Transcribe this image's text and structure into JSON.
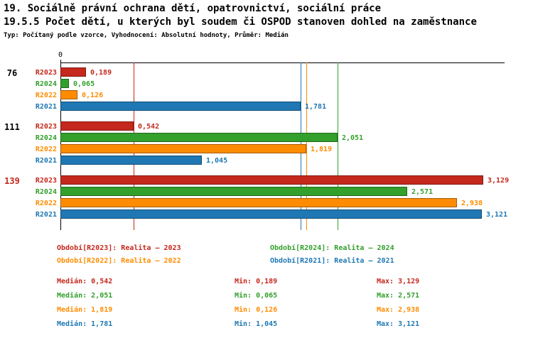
{
  "title": {
    "line1": "19. Sociálně právní ochrana dětí, opatrovnictví, sociální práce",
    "line2": "19.5.5 Počet dětí, u kterých byl soudem či OSPOD stanoven dohled na zaměstnance",
    "line3": "Typ: Počítaný podle vzorce, Vyhodnocení: Absolutní hodnoty, Průměr: Medián"
  },
  "colors": {
    "R2023": "#c5281c",
    "R2024": "#33a02c",
    "R2022": "#ff8c00",
    "R2021": "#1f78b4",
    "axis": "#000000"
  },
  "chart_data": {
    "type": "bar",
    "orientation": "horizontal",
    "x_axis": {
      "origin_label": "0",
      "min": 0,
      "max": 3.3,
      "grid": false
    },
    "legend_position": "bottom",
    "series_order": [
      "R2023",
      "R2024",
      "R2022",
      "R2021"
    ],
    "groups": [
      {
        "label": "76",
        "label_color": "#000000",
        "bars": [
          {
            "series": "R2023",
            "value": 0.189,
            "label": "0,189"
          },
          {
            "series": "R2024",
            "value": 0.065,
            "label": "0,065"
          },
          {
            "series": "R2022",
            "value": 0.126,
            "label": "0,126"
          },
          {
            "series": "R2021",
            "value": 1.781,
            "label": "1,781"
          }
        ]
      },
      {
        "label": "111",
        "label_color": "#000000",
        "bars": [
          {
            "series": "R2023",
            "value": 0.542,
            "label": "0,542"
          },
          {
            "series": "R2024",
            "value": 2.051,
            "label": "2,051"
          },
          {
            "series": "R2022",
            "value": 1.819,
            "label": "1,819"
          },
          {
            "series": "R2021",
            "value": 1.045,
            "label": "1,045"
          }
        ]
      },
      {
        "label": "139",
        "label_color": "#c5281c",
        "bars": [
          {
            "series": "R2023",
            "value": 3.129,
            "label": "3,129"
          },
          {
            "series": "R2024",
            "value": 2.571,
            "label": "2,571"
          },
          {
            "series": "R2022",
            "value": 2.938,
            "label": "2,938"
          },
          {
            "series": "R2021",
            "value": 3.121,
            "label": "3,121"
          }
        ]
      }
    ],
    "median_lines": [
      {
        "series": "R2023",
        "value": 0.542
      },
      {
        "series": "R2024",
        "value": 2.051
      },
      {
        "series": "R2022",
        "value": 1.819
      },
      {
        "series": "R2021",
        "value": 1.781
      }
    ]
  },
  "legend": [
    {
      "series": "R2023",
      "text": "Období[R2023]: Realita – 2023"
    },
    {
      "series": "R2024",
      "text": "Období[R2024]: Realita – 2024"
    },
    {
      "series": "R2022",
      "text": "Období[R2022]: Realita – 2022"
    },
    {
      "series": "R2021",
      "text": "Období[R2021]: Realita – 2021"
    }
  ],
  "stats": [
    {
      "series": "R2023",
      "median": "Medián: 0,542",
      "min": "Min: 0,189",
      "max": "Max: 3,129"
    },
    {
      "series": "R2024",
      "median": "Medián: 2,051",
      "min": "Min: 0,065",
      "max": "Max: 2,571"
    },
    {
      "series": "R2022",
      "median": "Medián: 1,819",
      "min": "Min: 0,126",
      "max": "Max: 2,938"
    },
    {
      "series": "R2021",
      "median": "Medián: 1,781",
      "min": "Min: 1,045",
      "max": "Max: 3,121"
    }
  ]
}
